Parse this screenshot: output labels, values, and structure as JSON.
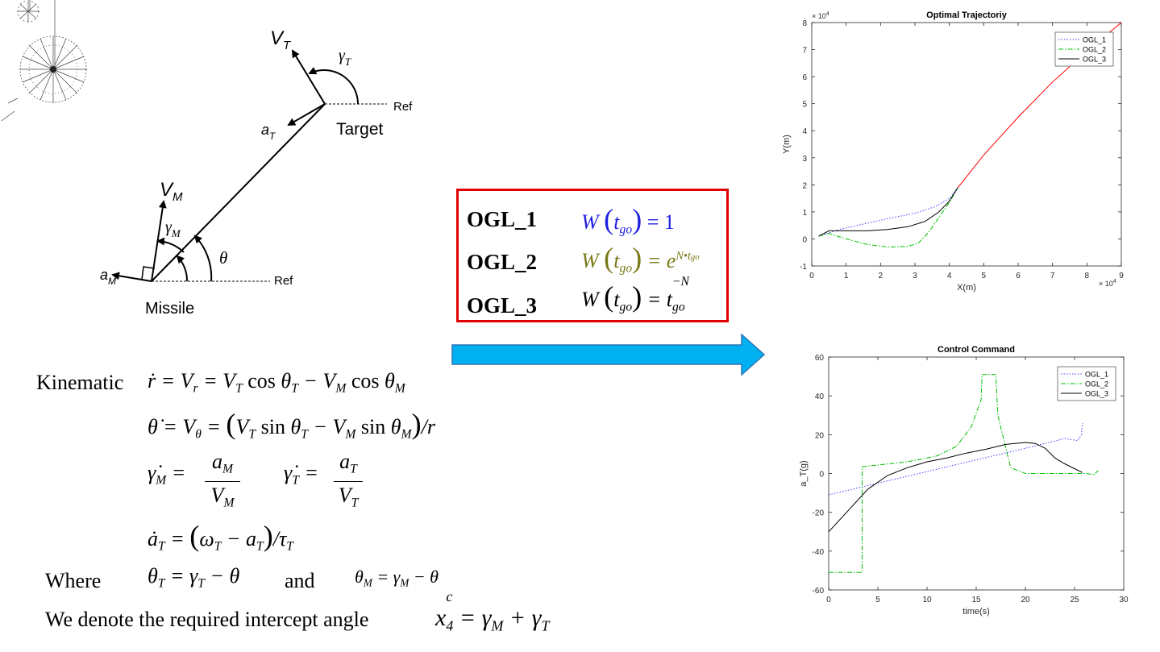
{
  "geometry": {
    "labels": {
      "vt": "V",
      "vt_sub": "T",
      "gamma_t": "γ",
      "gamma_t_sub": "T",
      "ref_top": "Ref",
      "at": "a",
      "at_sub": "T",
      "target": "Target",
      "vm": "V",
      "vm_sub": "M",
      "gamma_m": "γ",
      "gamma_m_sub": "M",
      "theta": "θ",
      "am": "a",
      "am_sub": "M",
      "ref_bottom": "Ref",
      "missile": "Missile"
    }
  },
  "weights_box": {
    "rows": [
      {
        "name": "OGL_1",
        "lhs": "W",
        "arg": "t",
        "arg_sub": "go",
        "rhs": "= 1",
        "color": "#1f1fe0"
      },
      {
        "name": "OGL_2",
        "lhs": "W",
        "arg": "t",
        "arg_sub": "go",
        "rhs": "= e",
        "rhs_sup": "N•t",
        "rhs_sup_sub": "go",
        "color": "#7a7a1a"
      },
      {
        "name": "OGL_3",
        "lhs": "W",
        "arg": "t",
        "arg_sub": "go",
        "rhs": "= t",
        "rhs_sub": "go",
        "rhs_sup": "−N",
        "color": "#000000"
      }
    ],
    "border_color": "#e00000"
  },
  "arrow_color": "#00b0f0",
  "equations": {
    "kinematic_label": "Kinematic",
    "where_label": "Where",
    "and_label": "and",
    "denote_text": "We denote the required intercept angle"
  },
  "charts": {
    "trajectory": {
      "title": "Optimal Trajectoriy",
      "xlabel": "X(m)",
      "ylabel": "Y(m)",
      "x_exp": "× 10",
      "x_exp_power": "4",
      "y_exp": "× 10",
      "y_exp_power": "4",
      "xticks": [
        "0",
        "1",
        "2",
        "3",
        "4",
        "5",
        "6",
        "7",
        "8",
        "9"
      ],
      "yticks": [
        "-1",
        "0",
        "1",
        "2",
        "3",
        "4",
        "5",
        "6",
        "7",
        "8"
      ],
      "legend": [
        "OGL_1",
        "OGL_2",
        "OGL_3"
      ]
    },
    "control": {
      "title": "Control Command",
      "xlabel": "time(s)",
      "ylabel": "a_T(g)",
      "xticks": [
        "0",
        "5",
        "10",
        "15",
        "20",
        "25",
        "30"
      ],
      "yticks": [
        "-60",
        "-40",
        "-20",
        "0",
        "20",
        "40",
        "60"
      ],
      "legend": [
        "OGL_1",
        "OGL_2",
        "OGL_3"
      ]
    }
  },
  "chart_data": [
    {
      "type": "line",
      "title": "Optimal Trajectoriy",
      "xlabel": "X(m)",
      "ylabel": "Y(m)",
      "xlim": [
        0,
        9
      ],
      "ylim": [
        -1,
        8
      ],
      "scale_note": "×10^4 on both axes",
      "series": [
        {
          "name": "OGL_1",
          "color": "#4040ff",
          "style": "dotted",
          "x": [
            0.2,
            0.8,
            1.5,
            2.2,
            3.0,
            3.6,
            4.0,
            4.25
          ],
          "y": [
            0.1,
            0.35,
            0.55,
            0.75,
            0.95,
            1.2,
            1.5,
            1.9
          ]
        },
        {
          "name": "OGL_2",
          "color": "#00c000",
          "style": "dashdot",
          "x": [
            0.2,
            0.5,
            1.0,
            1.6,
            2.2,
            2.8,
            3.1,
            3.4,
            3.7,
            4.0,
            4.25
          ],
          "y": [
            0.1,
            0.2,
            0.0,
            -0.2,
            -0.3,
            -0.28,
            -0.15,
            0.25,
            0.8,
            1.35,
            1.9
          ]
        },
        {
          "name": "OGL_3",
          "color": "#000000",
          "style": "solid",
          "x": [
            0.2,
            0.5,
            1.0,
            1.6,
            2.2,
            2.8,
            3.3,
            3.7,
            4.0,
            4.25
          ],
          "y": [
            0.1,
            0.3,
            0.3,
            0.3,
            0.35,
            0.45,
            0.65,
            1.0,
            1.4,
            1.9
          ]
        },
        {
          "name": "",
          "color": "#ff0000",
          "style": "solid",
          "x": [
            4.25,
            5.0,
            6.0,
            7.0,
            8.0,
            9.0
          ],
          "y": [
            1.9,
            3.1,
            4.5,
            5.8,
            6.95,
            8.0
          ]
        }
      ]
    },
    {
      "type": "line",
      "title": "Control Command",
      "xlabel": "time(s)",
      "ylabel": "a_T(g)",
      "xlim": [
        0,
        30
      ],
      "ylim": [
        -60,
        60
      ],
      "series": [
        {
          "name": "OGL_1",
          "color": "#4040ff",
          "style": "dotted",
          "x": [
            0,
            5,
            10,
            15,
            20,
            24,
            25.3,
            25.7,
            25.8
          ],
          "y": [
            -11,
            -5,
            1,
            7,
            13,
            18,
            17,
            20,
            26
          ]
        },
        {
          "name": "OGL_2",
          "color": "#00c000",
          "style": "dashdot",
          "x": [
            0,
            3.4,
            3.4,
            8,
            11,
            13,
            14.5,
            15.5,
            15.6,
            17.0,
            17.2,
            18.5,
            20,
            25,
            26,
            27,
            27.4
          ],
          "y": [
            -51,
            -51,
            3.5,
            6,
            9,
            14,
            24,
            38,
            51,
            51,
            30,
            3,
            0,
            0,
            0,
            -0.5,
            1.5
          ]
        },
        {
          "name": "OGL_3",
          "color": "#000000",
          "style": "solid",
          "x": [
            0,
            2,
            4,
            6,
            8,
            10,
            12,
            14,
            16,
            18,
            20,
            21,
            22,
            23,
            24,
            25,
            25.8
          ],
          "y": [
            -30,
            -19,
            -8,
            -1,
            3,
            6,
            8,
            10.5,
            12.5,
            15,
            16,
            15.5,
            13,
            8,
            5,
            2.5,
            0.5
          ]
        }
      ]
    }
  ]
}
